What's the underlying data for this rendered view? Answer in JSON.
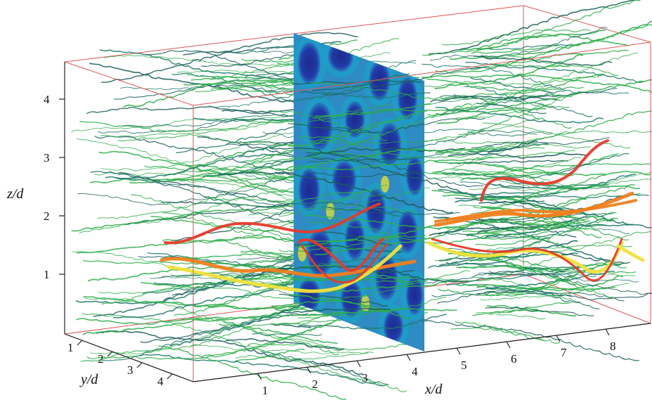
{
  "figure": {
    "axes": {
      "x": {
        "title": "x/d",
        "ticks": [
          "1",
          "2",
          "3",
          "4",
          "5",
          "6",
          "7",
          "8"
        ]
      },
      "y": {
        "title": "y/d",
        "ticks": [
          "1",
          "2",
          "3",
          "4"
        ]
      },
      "z": {
        "title": "z/d",
        "ticks": [
          "1",
          "2",
          "3",
          "4"
        ]
      }
    },
    "colors": {
      "box": "#e05555",
      "streamline_green": "#2eae4a",
      "streamline_teal": "#1f7a6a",
      "streamline_dark": "#1b5e5a",
      "highlight_red": "#e8392a",
      "highlight_orange": "#f0801e",
      "highlight_yellow": "#f2e23a",
      "slice_blue": "#1d2f9a",
      "slice_cyan": "#1aa0c8",
      "slice_yellow": "#d8d83a"
    }
  }
}
